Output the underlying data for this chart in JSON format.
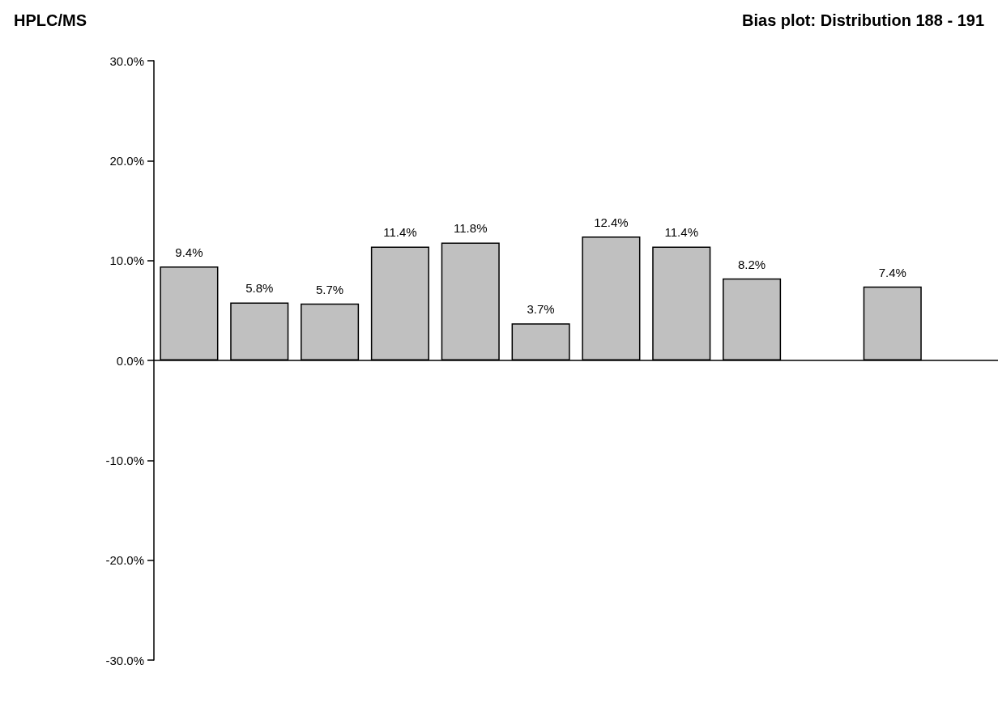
{
  "chart_data": {
    "type": "bar",
    "title": "HPLC/MS",
    "subtitle": "Bias plot: Distribution 188 - 191",
    "categories": [
      null,
      null,
      null,
      null,
      null,
      null,
      null,
      null,
      null,
      null,
      null,
      null
    ],
    "values": [
      9.4,
      5.8,
      5.7,
      11.4,
      11.8,
      3.7,
      12.4,
      11.4,
      8.2,
      null,
      7.4,
      null
    ],
    "value_labels": [
      "9.4%",
      "5.8%",
      "5.7%",
      "11.4%",
      "11.8%",
      "3.7%",
      "12.4%",
      "11.4%",
      "8.2%",
      null,
      "7.4%",
      null
    ],
    "color": "#c0c0c0",
    "ylim": [
      -30,
      30
    ],
    "yticks": [
      {
        "value": -30,
        "label": "-30.0%"
      },
      {
        "value": -20,
        "label": "-20.0%"
      },
      {
        "value": -10,
        "label": "-10.0%"
      },
      {
        "value": 0,
        "label": "0.0%"
      },
      {
        "value": 10,
        "label": "10.0%"
      },
      {
        "value": 20,
        "label": "20.0%"
      },
      {
        "value": 30,
        "label": "30.0%"
      }
    ],
    "tick_labels": "y"
  }
}
